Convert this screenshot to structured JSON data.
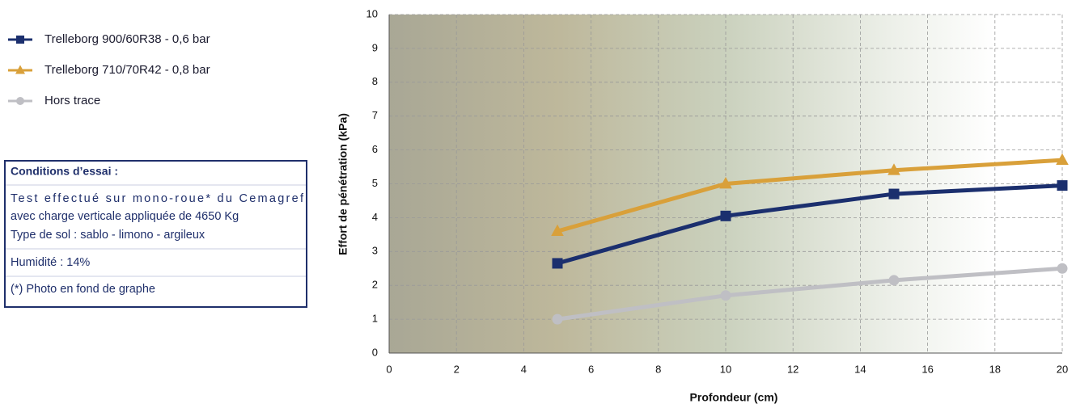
{
  "chart_data": {
    "type": "line",
    "x": [
      5,
      10,
      15,
      20
    ],
    "series": [
      {
        "name": "Trelleborg 900/60R38 - 0,6 bar",
        "color": "#1b2f6e",
        "marker": "square",
        "values": [
          2.65,
          4.05,
          4.7,
          4.95
        ]
      },
      {
        "name": "Trelleborg 710/70R42 - 0,8 bar",
        "color": "#d9a03a",
        "marker": "triangle",
        "values": [
          3.6,
          5.0,
          5.4,
          5.7
        ]
      },
      {
        "name": "Hors trace",
        "color": "#bfbfc4",
        "marker": "circle",
        "values": [
          1.0,
          1.7,
          2.15,
          2.5
        ]
      }
    ],
    "xlim": [
      0,
      20
    ],
    "xticks": [
      0,
      2,
      4,
      6,
      8,
      10,
      12,
      14,
      16,
      18,
      20
    ],
    "ylim": [
      0,
      10
    ],
    "yticks": [
      0,
      1,
      2,
      3,
      4,
      5,
      6,
      7,
      8,
      9,
      10
    ],
    "xlabel": "Profondeur (cm)",
    "ylabel": "Effort de pénétration (kPa)",
    "grid": true
  },
  "conditions": {
    "title": "Conditions d’essai :",
    "lines": [
      "Test effectué sur mono-roue* du Cemagref",
      "avec charge verticale appliquée de 4650 Kg",
      "Type de sol : sablo - limono - argileux",
      "Humidité : 14%",
      "(*) Photo en fond de graphe"
    ]
  }
}
